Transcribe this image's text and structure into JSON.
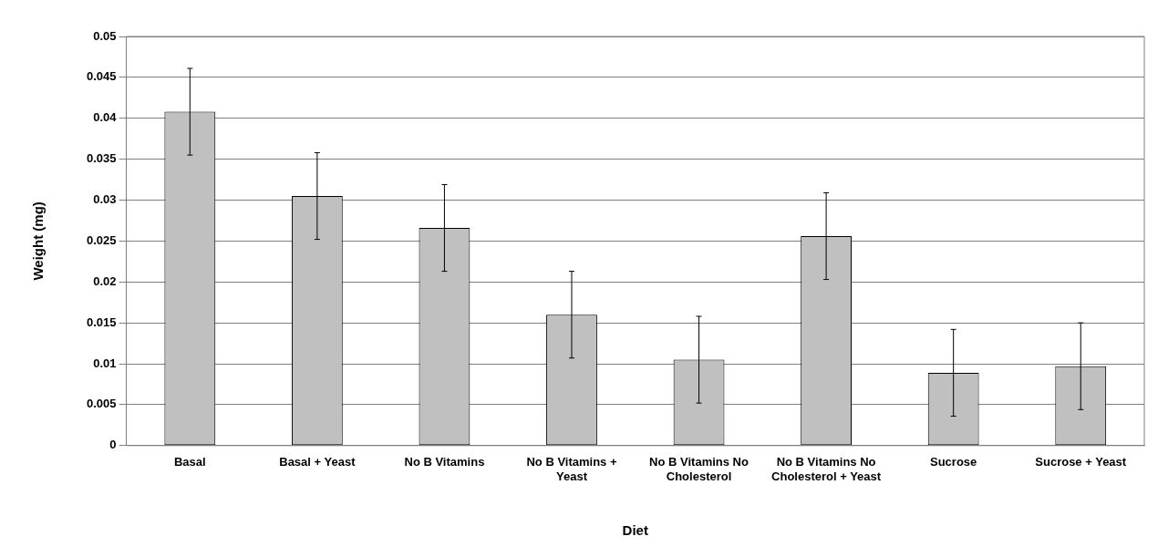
{
  "chart_data": {
    "type": "bar",
    "xlabel": "Diet",
    "ylabel": "Weight (mg)",
    "categories": [
      "Basal",
      "Basal + Yeast",
      "No B Vitamins",
      "No B Vitamins + Yeast",
      "No B Vitamins No Cholesterol",
      "No B Vitamins No Cholesterol + Yeast",
      "Sucrose",
      "Sucrose + Yeast"
    ],
    "values": [
      0.0408,
      0.0305,
      0.0266,
      0.016,
      0.0105,
      0.0256,
      0.0089,
      0.0097
    ],
    "errors": [
      0.0053,
      0.0053,
      0.0053,
      0.0053,
      0.0053,
      0.0053,
      0.0053,
      0.0053
    ],
    "color": "#c0c0c0",
    "ylim": [
      0,
      0.05
    ],
    "yticks": [
      0,
      0.005,
      0.01,
      0.015,
      0.02,
      0.025,
      0.03,
      0.035,
      0.04,
      0.045,
      0.05
    ],
    "grid": "y",
    "legend": false
  }
}
